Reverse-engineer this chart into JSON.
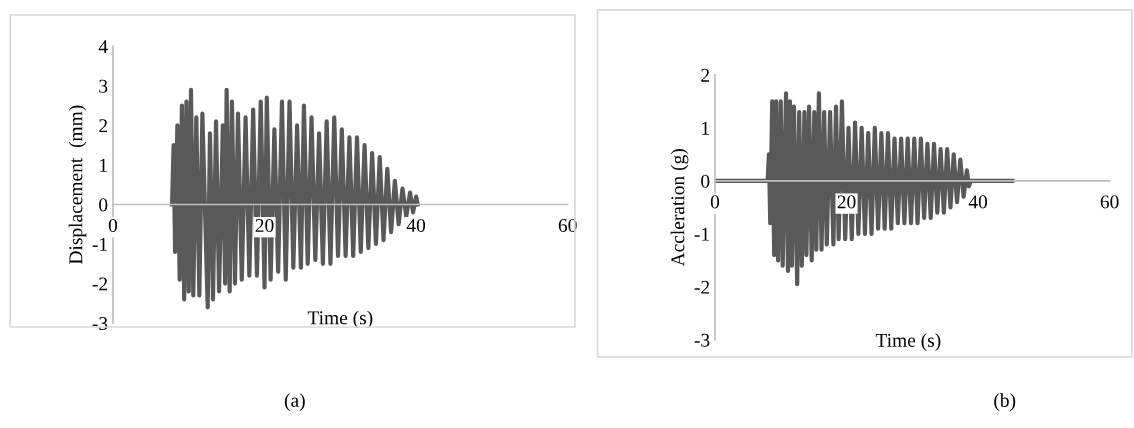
{
  "chart_data": [
    {
      "type": "line",
      "xlabel": "Time (s)",
      "ylabel": "Displacement  (mm)",
      "xlim": [
        0,
        60
      ],
      "ylim": [
        -3,
        4
      ],
      "xticks": [
        0,
        20,
        40,
        60
      ],
      "yticks": [
        -3,
        -2,
        -1,
        0,
        1,
        2,
        3,
        4
      ],
      "grid": false,
      "legend": false,
      "annotations": [
        "(a)"
      ],
      "series": [
        {
          "color": "#595959",
          "x": [
            7.8,
            8.0,
            8.2,
            8.5,
            8.8,
            9.1,
            9.4,
            9.7,
            10.0,
            10.3,
            10.6,
            11.0,
            11.4,
            11.8,
            12.5,
            12.8,
            13.2,
            13.6,
            14.0,
            14.5,
            14.8,
            15.0,
            15.4,
            15.7,
            16.1,
            16.5,
            17.0,
            17.5,
            18.0,
            18.5,
            19.0,
            19.5,
            20.0,
            20.3,
            20.8,
            21.3,
            21.8,
            22.3,
            22.8,
            23.3,
            23.8,
            24.3,
            24.8,
            25.2,
            25.7,
            26.2,
            26.7,
            27.2,
            27.7,
            28.2,
            28.7,
            29.2,
            29.7,
            30.2,
            30.7,
            31.2,
            31.7,
            32.2,
            32.7,
            33.2,
            33.7,
            34.2,
            34.7,
            35.2,
            35.7,
            36.2,
            36.7,
            37.2,
            37.7,
            38.2,
            38.7,
            39.2,
            39.6,
            40.0,
            40.2
          ],
          "values": [
            0,
            1.5,
            -1.2,
            2.0,
            -1.9,
            2.5,
            -2.4,
            2.6,
            -2.2,
            2.9,
            -2.3,
            2.2,
            -2.3,
            2.3,
            -2.6,
            1.8,
            -2.4,
            2.1,
            -2.2,
            2.0,
            -2.0,
            2.9,
            -2.2,
            2.6,
            -2.0,
            2.3,
            -1.9,
            2.2,
            -1.8,
            2.4,
            -1.8,
            2.6,
            -2.1,
            2.7,
            -1.9,
            1.9,
            -1.7,
            2.6,
            -1.9,
            2.6,
            -1.6,
            2.0,
            -1.6,
            2.5,
            -1.5,
            2.2,
            -1.4,
            1.8,
            -1.5,
            2.1,
            -1.5,
            2.2,
            -1.3,
            1.9,
            -1.3,
            1.7,
            -1.3,
            1.7,
            -1.2,
            1.5,
            -1.1,
            1.3,
            -1.0,
            1.2,
            -0.9,
            0.9,
            -0.7,
            0.6,
            -0.5,
            0.4,
            -0.3,
            0.3,
            -0.2,
            0.2,
            0
          ]
        }
      ]
    },
    {
      "type": "line",
      "xlabel": "Time (s)",
      "ylabel": "Accleration (g)",
      "xlim": [
        0,
        60
      ],
      "ylim": [
        -3,
        2
      ],
      "xticks": [
        0,
        20,
        40,
        60
      ],
      "yticks": [
        -3,
        -2,
        -1,
        0,
        1,
        2
      ],
      "grid": false,
      "legend": false,
      "annotations": [
        "(b)"
      ],
      "series": [
        {
          "color": "#595959",
          "x": [
            0,
            8.0,
            8.2,
            8.4,
            8.7,
            9.0,
            9.3,
            9.6,
            10.0,
            10.3,
            10.8,
            11.1,
            11.4,
            11.7,
            12.0,
            12.5,
            12.8,
            13.2,
            13.6,
            13.9,
            14.3,
            14.7,
            15.1,
            15.4,
            15.8,
            16.2,
            16.6,
            17.0,
            17.5,
            18.0,
            18.4,
            18.8,
            19.3,
            19.8,
            20.3,
            20.8,
            21.3,
            21.8,
            22.3,
            22.8,
            23.3,
            23.8,
            24.3,
            24.8,
            25.3,
            25.8,
            26.3,
            26.8,
            27.3,
            27.8,
            28.3,
            28.8,
            29.3,
            29.8,
            30.3,
            30.8,
            31.3,
            31.8,
            32.3,
            32.8,
            33.3,
            33.8,
            34.3,
            34.8,
            35.3,
            35.8,
            36.3,
            36.8,
            37.3,
            37.8,
            38.3,
            38.6,
            38.9,
            45.2
          ],
          "values": [
            0,
            0,
            0.5,
            -0.8,
            1.5,
            -1.4,
            1.5,
            -1.5,
            1.5,
            -1.6,
            1.65,
            -1.7,
            1.5,
            -1.6,
            1.4,
            -1.95,
            1.3,
            -1.6,
            1.3,
            -1.4,
            1.4,
            -1.5,
            1.3,
            -1.3,
            1.65,
            -1.3,
            1.3,
            -1.2,
            1.3,
            -1.2,
            1.4,
            -1.1,
            1.5,
            -1.1,
            1.0,
            -1.1,
            1.1,
            -1.0,
            1.0,
            -1.0,
            0.9,
            -1.0,
            1.0,
            -0.9,
            0.9,
            -0.9,
            0.9,
            -0.9,
            0.8,
            -0.8,
            0.8,
            -0.8,
            0.8,
            -0.8,
            0.8,
            -0.8,
            0.8,
            -0.7,
            0.7,
            -0.7,
            0.7,
            -0.6,
            0.6,
            -0.6,
            0.6,
            -0.5,
            0.5,
            -0.4,
            0.4,
            -0.3,
            0.2,
            -0.1,
            0,
            0
          ]
        }
      ]
    }
  ]
}
